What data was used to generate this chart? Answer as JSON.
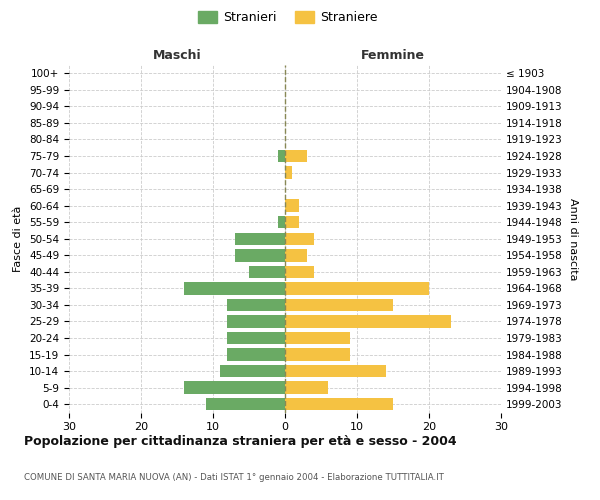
{
  "age_groups": [
    "0-4",
    "5-9",
    "10-14",
    "15-19",
    "20-24",
    "25-29",
    "30-34",
    "35-39",
    "40-44",
    "45-49",
    "50-54",
    "55-59",
    "60-64",
    "65-69",
    "70-74",
    "75-79",
    "80-84",
    "85-89",
    "90-94",
    "95-99",
    "100+"
  ],
  "birth_years": [
    "1999-2003",
    "1994-1998",
    "1989-1993",
    "1984-1988",
    "1979-1983",
    "1974-1978",
    "1969-1973",
    "1964-1968",
    "1959-1963",
    "1954-1958",
    "1949-1953",
    "1944-1948",
    "1939-1943",
    "1934-1938",
    "1929-1933",
    "1924-1928",
    "1919-1923",
    "1914-1918",
    "1909-1913",
    "1904-1908",
    "≤ 1903"
  ],
  "maschi": [
    11,
    14,
    9,
    8,
    8,
    8,
    8,
    14,
    5,
    7,
    7,
    1,
    0,
    0,
    0,
    1,
    0,
    0,
    0,
    0,
    0
  ],
  "femmine": [
    15,
    6,
    14,
    9,
    9,
    23,
    15,
    20,
    4,
    3,
    4,
    2,
    2,
    0,
    1,
    3,
    0,
    0,
    0,
    0,
    0
  ],
  "maschi_color": "#6aaa64",
  "femmine_color": "#f5c242",
  "title": "Popolazione per cittadinanza straniera per età e sesso - 2004",
  "subtitle": "COMUNE DI SANTA MARIA NUOVA (AN) - Dati ISTAT 1° gennaio 2004 - Elaborazione TUTTITALIA.IT",
  "ylabel_left": "Fasce di età",
  "ylabel_right": "Anni di nascita",
  "xlabel_maschi": "Maschi",
  "xlabel_femmine": "Femmine",
  "legend_maschi": "Stranieri",
  "legend_femmine": "Straniere",
  "xlim": 30,
  "background_color": "#ffffff",
  "grid_color": "#cccccc"
}
